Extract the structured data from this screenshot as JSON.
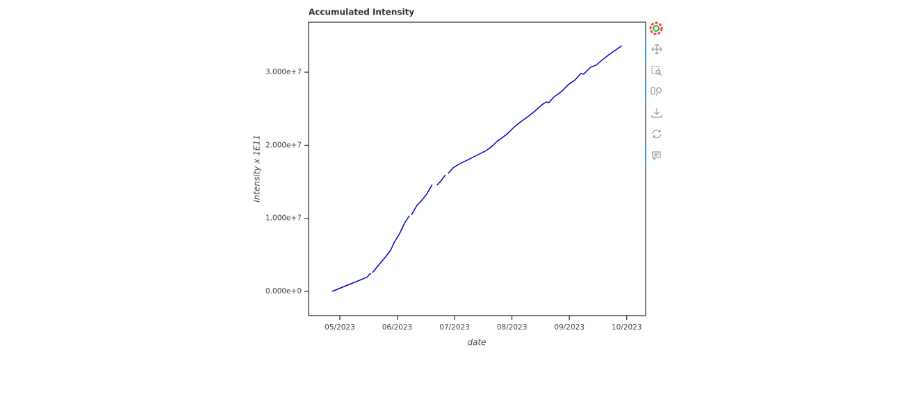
{
  "chart_data": {
    "type": "line",
    "title": "Accumulated Intensity",
    "x_label": "date",
    "y_label": "Intensity x 1E11",
    "color": "#0000cc",
    "x": [
      4.867,
      5.133,
      5.375,
      5.484,
      5.508,
      5.545,
      null,
      5.569,
      5.678,
      5.799,
      5.884,
      5.944,
      6.041,
      6.126,
      6.211,
      null,
      6.247,
      6.344,
      6.416,
      6.513,
      6.61,
      null,
      6.695,
      6.78,
      6.84,
      null,
      6.889,
      6.973,
      7.07,
      7.215,
      7.337,
      7.433,
      7.554,
      7.651,
      7.736,
      7.821,
      7.918,
      8.039,
      8.16,
      8.281,
      8.402,
      8.523,
      8.596,
      8.644,
      8.729,
      8.862,
      8.983,
      9.104,
      9.201,
      9.249,
      9.37,
      9.467,
      9.564,
      9.673,
      9.794,
      9.915
    ],
    "values": [
      0,
      855000,
      1614000,
      1994000,
      2279000,
      2469000,
      null,
      2564000,
      3609000,
      4748000,
      5603000,
      6648000,
      7882000,
      9307000,
      10351000,
      null,
      10446000,
      11776000,
      12346000,
      13295000,
      14625000,
      null,
      14530000,
      15290000,
      15954000,
      null,
      16144000,
      16904000,
      17379000,
      17949000,
      18424000,
      18803000,
      19278000,
      19848000,
      20513000,
      20988000,
      21557000,
      22507000,
      23267000,
      23932000,
      24691000,
      25546000,
      25926000,
      25831000,
      26591000,
      27350000,
      28300000,
      28965000,
      29820000,
      29725000,
      30674000,
      30959000,
      31624000,
      32289000,
      32953000,
      33618000
    ],
    "xlim": [
      4.455,
      10.33
    ],
    "xticks": [
      {
        "value": 5,
        "label": "05/2023"
      },
      {
        "value": 6,
        "label": "06/2023"
      },
      {
        "value": 7,
        "label": "07/2023"
      },
      {
        "value": 8,
        "label": "08/2023"
      },
      {
        "value": 9,
        "label": "09/2023"
      },
      {
        "value": 10,
        "label": "10/2023"
      }
    ],
    "ylim": [
      -3320000,
      36840000
    ],
    "yticks": [
      {
        "value": 0,
        "label": "0.000e+0"
      },
      {
        "value": 10000000,
        "label": "1.000e+7"
      },
      {
        "value": 20000000,
        "label": "2.000e+7"
      },
      {
        "value": 30000000,
        "label": "3.000e+7"
      }
    ]
  }
}
